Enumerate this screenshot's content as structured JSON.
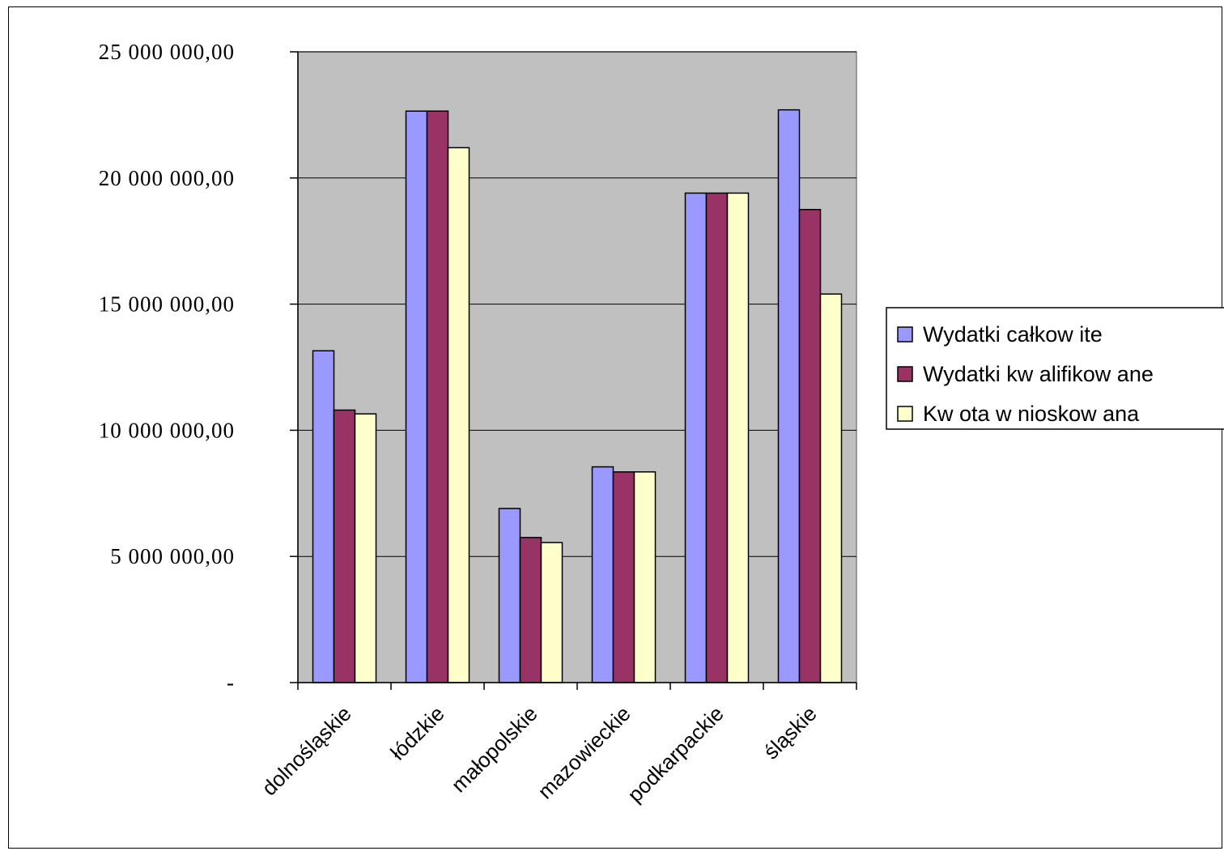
{
  "chart_data": {
    "type": "bar",
    "categories": [
      "dolnośląskie",
      "łódzkie",
      "małopolskie",
      "mazowieckie",
      "podkarpackie",
      "śląskie"
    ],
    "series": [
      {
        "name": "Wydatki całkow ite",
        "color": "#9999FF",
        "values": [
          13150000,
          22650000,
          6900000,
          8550000,
          19400000,
          22700000
        ]
      },
      {
        "name": "Wydatki kw alifikow ane",
        "color": "#993366",
        "values": [
          10800000,
          22650000,
          5750000,
          8350000,
          19400000,
          18750000
        ]
      },
      {
        "name": "Kw ota w nioskow ana",
        "color": "#FFFFCC",
        "values": [
          10650000,
          21200000,
          5550000,
          8350000,
          19400000,
          15400000
        ]
      }
    ],
    "ylim": [
      0,
      25000000
    ],
    "yticks": [
      0,
      5000000,
      10000000,
      15000000,
      20000000,
      25000000
    ],
    "ytick_labels": [
      "-",
      "5 000 000,00",
      "10 000 000,00",
      "15 000 000,00",
      "20 000 000,00",
      "25 000 000,00"
    ],
    "plot_background": "#C0C0C0",
    "grid": true,
    "legend_position": "right"
  }
}
